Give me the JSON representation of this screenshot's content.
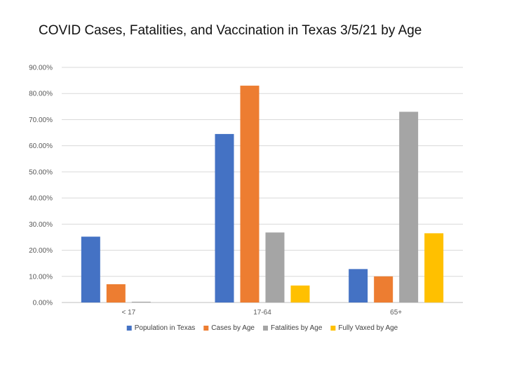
{
  "chart_data": {
    "type": "bar",
    "title": "COVID Cases, Fatalities, and Vaccination in Texas 3/5/21 by Age",
    "xlabel": "",
    "ylabel": "",
    "ylim": [
      0,
      90
    ],
    "yticks": [
      "0.00%",
      "10.00%",
      "20.00%",
      "30.00%",
      "40.00%",
      "50.00%",
      "60.00%",
      "70.00%",
      "80.00%",
      "90.00%"
    ],
    "categories": [
      "< 17",
      "17-64",
      "65+"
    ],
    "series": [
      {
        "name": "Population in Texas",
        "color": "#4472c4",
        "values": [
          25.2,
          64.5,
          12.8
        ]
      },
      {
        "name": "Cases by Age",
        "color": "#ed7d31",
        "values": [
          7.0,
          83.0,
          10.0
        ]
      },
      {
        "name": "Fatalities by Age",
        "color": "#a5a5a5",
        "values": [
          0.3,
          26.8,
          73.0
        ]
      },
      {
        "name": "Fully Vaxed by Age",
        "color": "#ffc000",
        "values": [
          0.0,
          6.5,
          26.5
        ]
      }
    ],
    "legend_position": "bottom",
    "grid": true
  }
}
